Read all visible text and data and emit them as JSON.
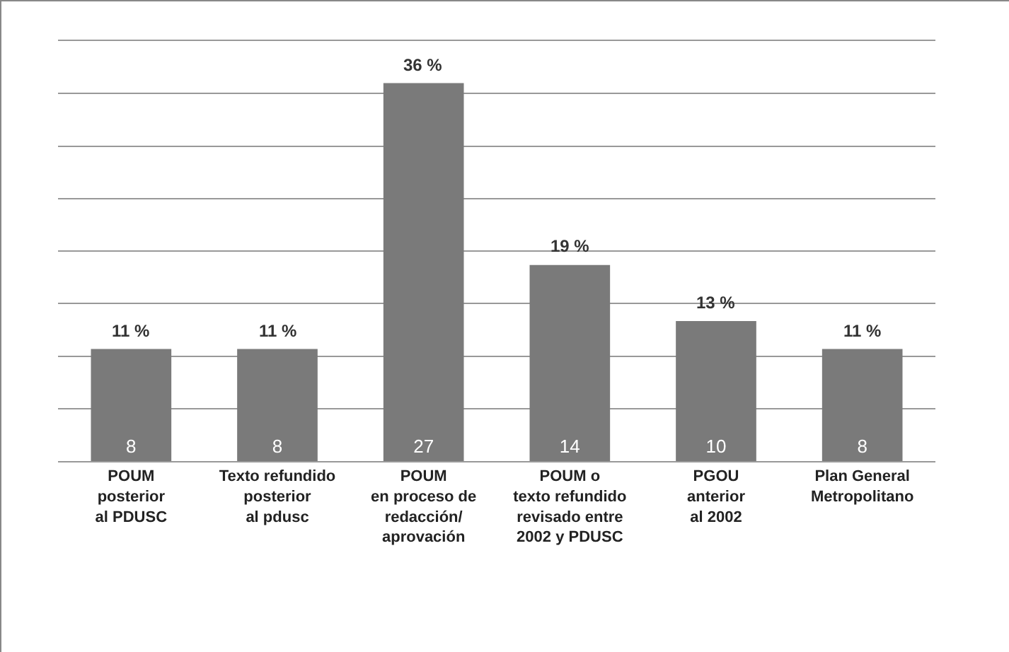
{
  "chart_data": {
    "type": "bar",
    "categories": [
      "POUM\nposterior\nal PDUSC",
      "Texto refundido\nposterior\nal pdusc",
      "POUM\nen proceso de\nredacción/\naprovación",
      "POUM o\ntexto refundido\nrevisado entre\n2002 y PDUSC",
      "PGOU\nanterior\nal 2002",
      "Plan General\nMetropolitano"
    ],
    "values": [
      8,
      8,
      27,
      14,
      10,
      8
    ],
    "color": "#7a7a7a",
    "data_labels": true,
    "ylim": [
      0,
      30
    ],
    "yticks": [
      {
        "value": 0,
        "label": null
      },
      {
        "value": 3.75,
        "label": null
      },
      {
        "value": 7.5,
        "label": null
      },
      {
        "value": 11.25,
        "label": null
      },
      {
        "value": 15,
        "label": null
      },
      {
        "value": 18.75,
        "label": null
      },
      {
        "value": 22.5,
        "label": null
      },
      {
        "value": 26.25,
        "label": null
      },
      {
        "value": 30,
        "label": null
      }
    ],
    "grid": "y",
    "tick_labels": "x",
    "annotations": [
      {
        "text": "11 %",
        "x": "POUM\nposterior\nal PDUSC",
        "y": 8
      },
      {
        "text": "11 %",
        "x": "Texto refundido\nposterior\nal pdusc",
        "y": 8
      },
      {
        "text": "36 %",
        "x": "POUM\nen proceso de\nredacción/\naprovación",
        "y": 27
      },
      {
        "text": "19 %",
        "x": "POUM o\ntexto refundido\nrevisado entre\n2002 y PDUSC",
        "y": 14
      },
      {
        "text": "13 %",
        "x": "PGOU\nanterior\nal 2002",
        "y": 10
      },
      {
        "text": "11 %",
        "x": "Plan General\nMetropolitano",
        "y": 8
      }
    ]
  }
}
